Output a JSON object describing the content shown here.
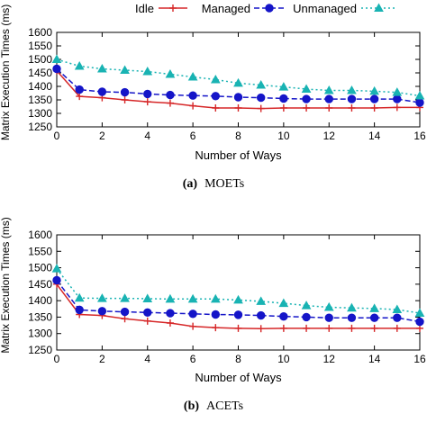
{
  "legend": {
    "entries": [
      "Idle",
      "Managed",
      "Unmanaged"
    ]
  },
  "colors": {
    "idle": "#d62728",
    "managed": "#1515c8",
    "unmanaged": "#19b3b3",
    "axis": "#000000"
  },
  "chart_data": [
    {
      "type": "line",
      "caption_letter": "(a)",
      "caption_text": "MOETs",
      "xlabel": "Number of Ways",
      "ylabel": "Matrix Execution Times (ms)",
      "xlim": [
        0,
        16
      ],
      "ylim": [
        1250,
        1600
      ],
      "xticks": [
        0,
        2,
        4,
        6,
        8,
        10,
        12,
        14,
        16
      ],
      "yticks": [
        1250,
        1300,
        1350,
        1400,
        1450,
        1500,
        1550,
        1600
      ],
      "x": [
        0,
        1,
        2,
        3,
        4,
        5,
        6,
        7,
        8,
        9,
        10,
        11,
        12,
        13,
        14,
        15,
        16
      ],
      "series": [
        {
          "name": "Idle",
          "values": [
            1458,
            1363,
            1358,
            1350,
            1343,
            1338,
            1328,
            1320,
            1320,
            1318,
            1320,
            1320,
            1320,
            1320,
            1320,
            1322,
            1322
          ]
        },
        {
          "name": "Managed",
          "values": [
            1465,
            1388,
            1380,
            1378,
            1372,
            1368,
            1366,
            1364,
            1360,
            1358,
            1355,
            1353,
            1353,
            1353,
            1353,
            1353,
            1340
          ]
        },
        {
          "name": "Unmanaged",
          "values": [
            1500,
            1475,
            1465,
            1460,
            1455,
            1445,
            1435,
            1425,
            1412,
            1405,
            1398,
            1390,
            1385,
            1385,
            1382,
            1378,
            1365
          ]
        }
      ],
      "grid": false,
      "legend_position": "top"
    },
    {
      "type": "line",
      "caption_letter": "(b)",
      "caption_text": "ACETs",
      "xlabel": "Number of Ways",
      "ylabel": "Matrix Execution Times (ms)",
      "xlim": [
        0,
        16
      ],
      "ylim": [
        1250,
        1600
      ],
      "xticks": [
        0,
        2,
        4,
        6,
        8,
        10,
        12,
        14,
        16
      ],
      "yticks": [
        1250,
        1300,
        1350,
        1400,
        1450,
        1500,
        1550,
        1600
      ],
      "x": [
        0,
        1,
        2,
        3,
        4,
        5,
        6,
        7,
        8,
        9,
        10,
        11,
        12,
        13,
        14,
        15,
        16
      ],
      "series": [
        {
          "name": "Idle",
          "values": [
            1450,
            1358,
            1355,
            1345,
            1338,
            1332,
            1322,
            1318,
            1316,
            1315,
            1316,
            1316,
            1316,
            1316,
            1316,
            1316,
            1316
          ]
        },
        {
          "name": "Managed",
          "values": [
            1462,
            1372,
            1368,
            1366,
            1364,
            1362,
            1360,
            1358,
            1357,
            1355,
            1352,
            1350,
            1348,
            1348,
            1348,
            1348,
            1336
          ]
        },
        {
          "name": "Unmanaged",
          "values": [
            1497,
            1408,
            1407,
            1407,
            1406,
            1405,
            1405,
            1405,
            1402,
            1398,
            1392,
            1385,
            1380,
            1378,
            1376,
            1373,
            1362
          ]
        }
      ],
      "grid": false
    }
  ]
}
